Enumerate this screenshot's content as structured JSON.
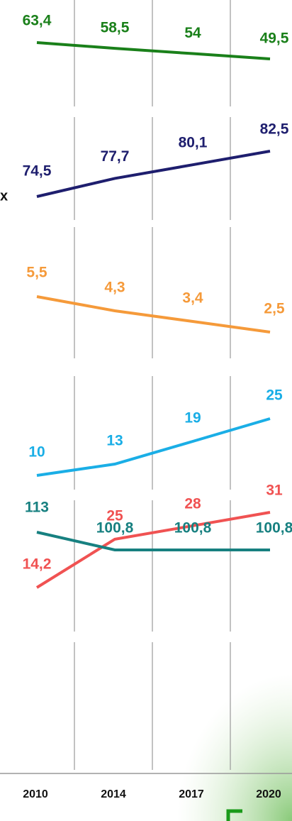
{
  "chart_data": [
    {
      "type": "line",
      "color": "#1a801a",
      "values": [
        63.4,
        58.5,
        54,
        49.5
      ],
      "value_labels": [
        "63,4",
        "58,5",
        "54",
        "49,5"
      ]
    },
    {
      "type": "line",
      "color": "#1e1e6e",
      "values": [
        74.5,
        77.7,
        80.1,
        82.5
      ],
      "value_labels": [
        "74,5",
        "77,7",
        "80,1",
        "82,5"
      ],
      "annotation": "x"
    },
    {
      "type": "line",
      "color": "#f59a3a",
      "values": [
        5.5,
        4.3,
        3.4,
        2.5
      ],
      "value_labels": [
        "5,5",
        "4,3",
        "3,4",
        "2,5"
      ]
    },
    {
      "type": "line",
      "color": "#1aaee6",
      "values": [
        10,
        13,
        19,
        25
      ]
    },
    {
      "type": "line",
      "color": "#f05252",
      "values": [
        14.2,
        25,
        28,
        31
      ],
      "value_labels": [
        "14,2",
        "25",
        "28",
        "31"
      ]
    },
    {
      "type": "line",
      "color": "#178080",
      "values": [
        113,
        100.8,
        100.8,
        100.8
      ],
      "value_labels": [
        "113",
        "100,8",
        "100,8",
        "100,8"
      ],
      "categories": [
        "2010",
        "2014",
        "2017",
        "2020"
      ]
    }
  ]
}
